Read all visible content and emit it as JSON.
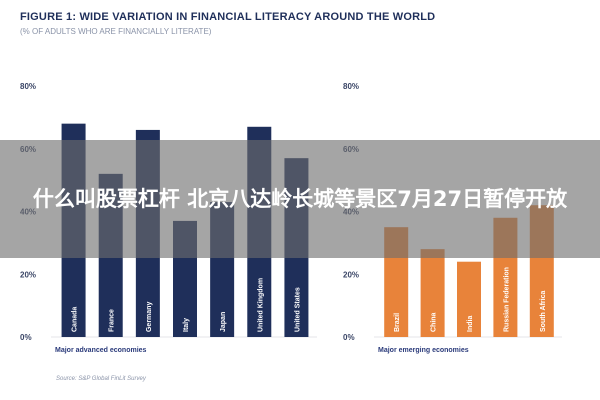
{
  "figure": {
    "title": "FIGURE 1: WIDE VARIATION IN FINANCIAL LITERACY AROUND THE WORLD",
    "subtitle": "(% OF ADULTS WHO ARE FINANCIALLY LITERATE)",
    "source": "Source: S&P Global FinLit Survey"
  },
  "overlay": {
    "headline": "什么叫股票杠杆 北京八达岭长城等景区7月27日暂停开放"
  },
  "colors": {
    "advanced_bar": "#1f2f5a",
    "emerging_bar": "#e8833a",
    "axis_text": "#3a4566",
    "group_label": "#2a3a7a",
    "overlay_bg": "#6e6e6e"
  },
  "chart_data": [
    {
      "type": "bar",
      "group_label": "Major advanced economies",
      "categories": [
        "Canada",
        "France",
        "Germany",
        "Italy",
        "Japan",
        "United Kingdom",
        "United States"
      ],
      "values": [
        68,
        52,
        66,
        37,
        43,
        67,
        57
      ],
      "ylim": [
        0,
        80
      ],
      "yticks": [
        "0%",
        "20%",
        "40%",
        "60%",
        "80%"
      ],
      "grid": false
    },
    {
      "type": "bar",
      "group_label": "Major emerging economies",
      "categories": [
        "Brazil",
        "China",
        "India",
        "Russian Federation",
        "South Africa"
      ],
      "values": [
        35,
        28,
        24,
        38,
        42
      ],
      "ylim": [
        0,
        80
      ],
      "yticks": [
        "0%",
        "20%",
        "40%",
        "60%",
        "80%"
      ],
      "grid": false
    }
  ]
}
